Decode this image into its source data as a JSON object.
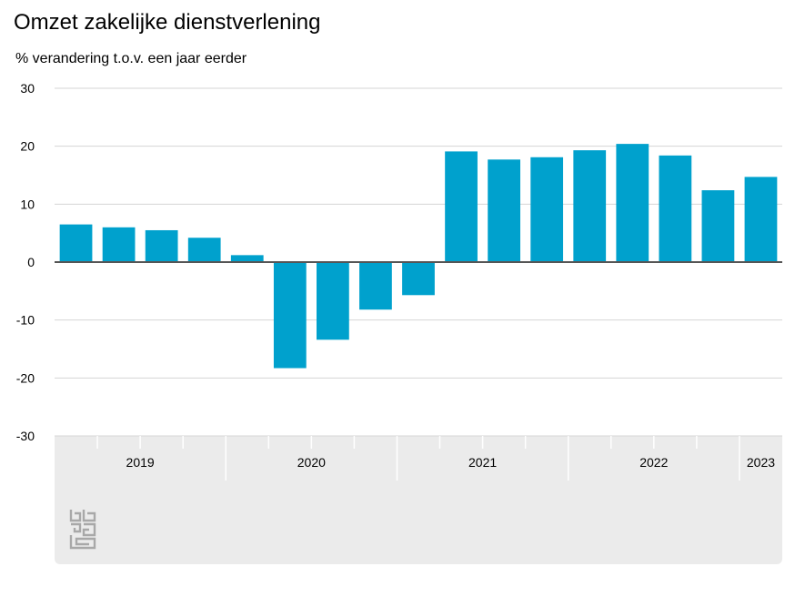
{
  "chart_data": {
    "type": "bar",
    "title": "Omzet zakelijke dienstverlening",
    "ylabel": "% verandering t.o.v. een jaar eerder",
    "ylim": [
      -30,
      30
    ],
    "yticks": [
      30,
      20,
      10,
      0,
      -10,
      -20,
      -30
    ],
    "ytick_labels": [
      "30",
      "20",
      "10",
      "0",
      "-10",
      "-20",
      "-30"
    ],
    "grid": true,
    "bar_color": "#00a1cd",
    "quarters": [
      "2019 Q1",
      "2019 Q2",
      "2019 Q3",
      "2019 Q4",
      "2020 Q1",
      "2020 Q2",
      "2020 Q3",
      "2020 Q4",
      "2021 Q1",
      "2021 Q2",
      "2021 Q3",
      "2021 Q4",
      "2022 Q1",
      "2022 Q2",
      "2022 Q3",
      "2022 Q4",
      "2023 Q1"
    ],
    "values": [
      6.5,
      6.0,
      5.5,
      4.2,
      1.2,
      -18.3,
      -13.4,
      -8.2,
      -5.7,
      19.1,
      17.7,
      18.1,
      19.3,
      20.4,
      18.4,
      12.4,
      14.7
    ],
    "groups": [
      {
        "label": "2019",
        "count": 4
      },
      {
        "label": "2020",
        "count": 4
      },
      {
        "label": "2021",
        "count": 4
      },
      {
        "label": "2022",
        "count": 4
      },
      {
        "label": "2023",
        "count": 1
      }
    ]
  },
  "colors": {
    "bar": "#00a1cd",
    "grid": "#d4d4d4",
    "zero_line": "#555555",
    "axis_panel": "#ebebeb",
    "logo": "#a8a8a8"
  },
  "logo": {
    "name": "cbs-logo"
  }
}
